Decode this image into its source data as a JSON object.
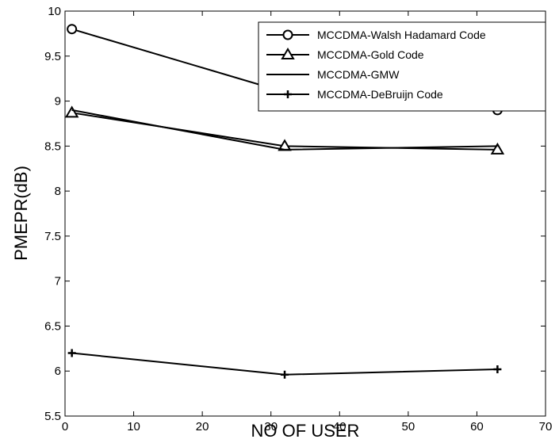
{
  "chart_data": {
    "type": "line",
    "title": "",
    "xlabel": "NO OF USER",
    "ylabel": "PMEPR(dB)",
    "xlim": [
      0,
      70
    ],
    "ylim": [
      5.5,
      10
    ],
    "xticks": [
      0,
      10,
      20,
      30,
      40,
      50,
      60,
      70
    ],
    "yticks": [
      5.5,
      6,
      6.5,
      7,
      7.5,
      8,
      8.5,
      9,
      9.5,
      10
    ],
    "grid": false,
    "legend_position": "top-right",
    "series": [
      {
        "name": "MCCDMA-Walsh Hadamard Code",
        "marker": "circle",
        "x": [
          1,
          32,
          63
        ],
        "y": [
          9.8,
          9.1,
          8.9
        ]
      },
      {
        "name": "MCCDMA-Gold Code",
        "marker": "triangle",
        "x": [
          1,
          32,
          63
        ],
        "y": [
          8.87,
          8.5,
          8.46
        ]
      },
      {
        "name": "MCCDMA-GMW",
        "marker": "none",
        "x": [
          1,
          32,
          63
        ],
        "y": [
          8.9,
          8.46,
          8.5
        ]
      },
      {
        "name": "MCCDMA-DeBruijn Code",
        "marker": "plus",
        "x": [
          1,
          32,
          63
        ],
        "y": [
          6.2,
          5.96,
          6.02
        ]
      }
    ]
  }
}
